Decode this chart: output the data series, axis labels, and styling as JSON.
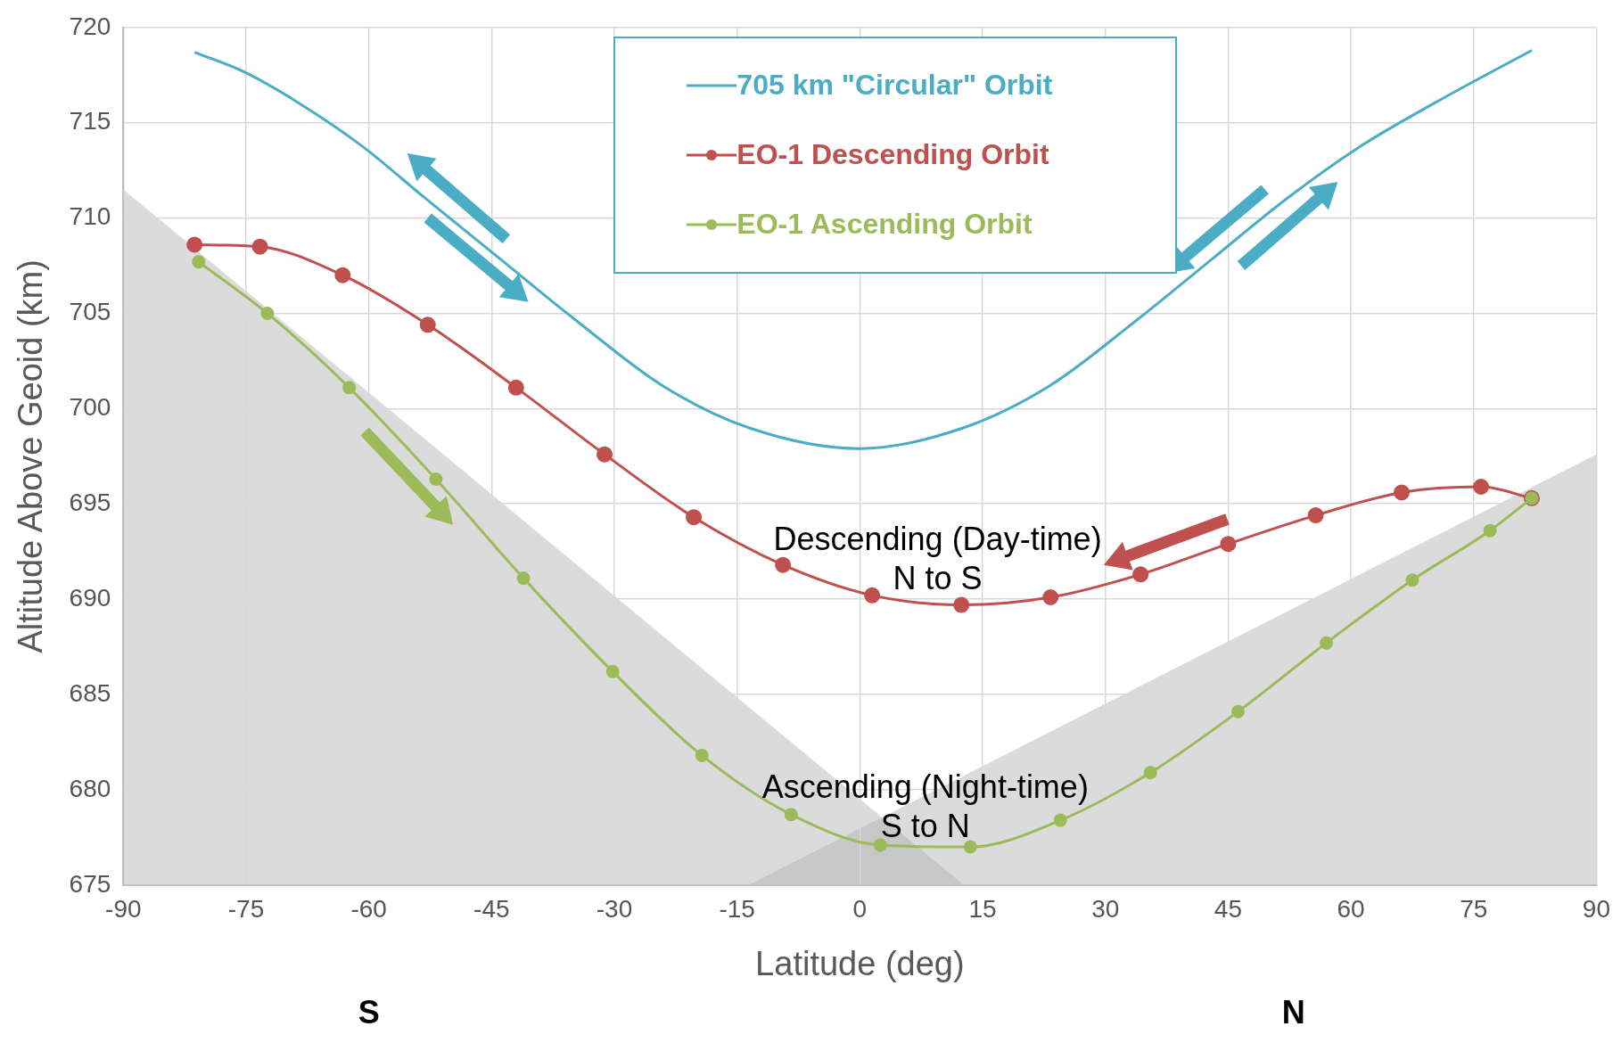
{
  "chart_data": {
    "type": "line",
    "xlabel": "Latitude (deg)",
    "ylabel": "Altitude Above Geoid (km)",
    "xlim": [
      -90,
      90
    ],
    "xticks": [
      -90,
      -75,
      -60,
      -45,
      -30,
      -15,
      0,
      15,
      30,
      45,
      60,
      75,
      90
    ],
    "ylim": [
      675,
      720
    ],
    "yticks": [
      675,
      680,
      685,
      690,
      695,
      700,
      705,
      710,
      715,
      720
    ],
    "grid": true,
    "legend": "top",
    "line_style": "solid",
    "series": [
      {
        "name": "705 km \"Circular\" Orbit",
        "color": "#4bacc6",
        "marker": "none",
        "x": [
          -81.3,
          -75.4,
          -68.8,
          -60.9,
          -53.0,
          -43.8,
          -34.6,
          -24.1,
          -13.6,
          0,
          12.7,
          23.2,
          33.7,
          42.9,
          52.1,
          61.3,
          70.5,
          82.1
        ],
        "values": [
          718.7,
          717.7,
          716.1,
          713.8,
          711.0,
          707.8,
          704.6,
          701.2,
          699.0,
          697.9,
          699.0,
          701.2,
          704.6,
          707.8,
          711.0,
          713.8,
          716.1,
          718.8
        ]
      },
      {
        "name": "EO-1 Descending Orbit",
        "color": "#c0504d",
        "marker": "circle",
        "x": [
          -81.3,
          -73.3,
          -63.2,
          -52.8,
          -42.0,
          -31.2,
          -20.3,
          -9.4,
          1.5,
          12.4,
          23.3,
          34.3,
          45.0,
          55.7,
          66.2,
          75.9,
          82.1
        ],
        "values": [
          708.6,
          708.5,
          707.0,
          704.4,
          701.1,
          697.6,
          694.3,
          691.8,
          690.2,
          689.7,
          690.1,
          691.3,
          692.9,
          694.4,
          695.6,
          695.9,
          695.3
        ]
      },
      {
        "name": "EO-1 Ascending Orbit",
        "color": "#9bbb59",
        "marker": "circle",
        "x": [
          -80.8,
          -72.4,
          -62.4,
          -51.8,
          -41.1,
          -30.2,
          -19.3,
          -8.4,
          2.5,
          13.5,
          24.5,
          35.5,
          46.2,
          57.0,
          67.5,
          77.0,
          82.1
        ],
        "values": [
          707.7,
          705.0,
          701.1,
          696.3,
          691.1,
          686.2,
          681.8,
          678.7,
          677.1,
          677.0,
          678.4,
          680.9,
          684.1,
          687.7,
          691.0,
          693.6,
          695.3
        ]
      }
    ],
    "annotations": [
      "Descending (Day-time)\nN to S",
      "Ascending (Night-time)\nS to N",
      "S",
      "N"
    ]
  }
}
